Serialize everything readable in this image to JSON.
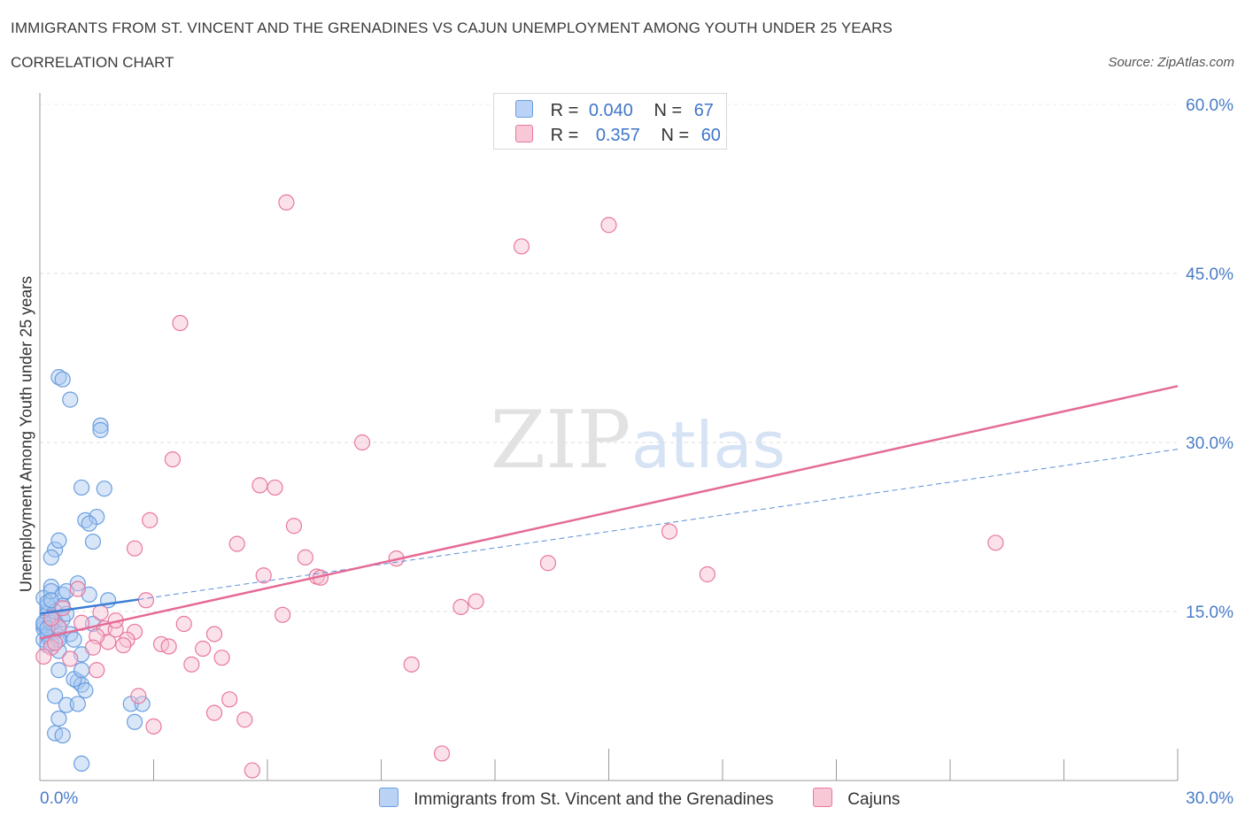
{
  "title": "IMMIGRANTS FROM ST. VINCENT AND THE GRENADINES VS CAJUN UNEMPLOYMENT AMONG YOUTH UNDER 25 YEARS",
  "subtitle": "CORRELATION CHART",
  "source": "Source: ZipAtlas.com",
  "watermark": {
    "zip": "ZIP",
    "atlas": "atlas"
  },
  "legend": {
    "r_label": "R =",
    "n_label": "N =",
    "series1": {
      "r": "0.040",
      "n": "67"
    },
    "series2": {
      "r": "0.357",
      "n": "60"
    }
  },
  "chart_data": {
    "type": "scatter",
    "xlabel": "",
    "ylabel": "Unemployment Among Youth under 25 years",
    "xlim": [
      0,
      30
    ],
    "ylim": [
      0,
      60
    ],
    "x_tick_labels": [
      "0.0%",
      "30.0%"
    ],
    "y_tick_labels": [
      "15.0%",
      "30.0%",
      "45.0%",
      "60.0%"
    ],
    "y_ticks": [
      15,
      30,
      45,
      60
    ],
    "grid": true,
    "series": [
      {
        "name": "Immigrants from St. Vincent and the Grenadines",
        "color": "#6a9ee0",
        "fill": "#a9c8f0",
        "trend": {
          "x": [
            0,
            30
          ],
          "y": [
            14.8,
            29.4
          ],
          "solid_until": 2.6
        },
        "points": [
          [
            0.1,
            13.5
          ],
          [
            0.2,
            12.8
          ],
          [
            0.1,
            16.2
          ],
          [
            0.3,
            14.5
          ],
          [
            0.2,
            15.5
          ],
          [
            0.1,
            12.5
          ],
          [
            0.4,
            13.2
          ],
          [
            0.3,
            17.2
          ],
          [
            0.2,
            14.8
          ],
          [
            0.1,
            13.8
          ],
          [
            0.5,
            12.8
          ],
          [
            0.2,
            15.8
          ],
          [
            0.3,
            16.8
          ],
          [
            0.4,
            14.2
          ],
          [
            0.1,
            14.0
          ],
          [
            0.6,
            16.5
          ],
          [
            0.5,
            13.5
          ],
          [
            0.3,
            12.2
          ],
          [
            0.7,
            16.8
          ],
          [
            0.2,
            13.0
          ],
          [
            0.4,
            20.5
          ],
          [
            0.5,
            21.3
          ],
          [
            0.3,
            19.8
          ],
          [
            0.8,
            13.0
          ],
          [
            0.6,
            15.5
          ],
          [
            0.9,
            12.5
          ],
          [
            1.0,
            17.5
          ],
          [
            1.1,
            11.2
          ],
          [
            0.5,
            11.5
          ],
          [
            0.2,
            12.0
          ],
          [
            0.5,
            35.8
          ],
          [
            0.6,
            35.6
          ],
          [
            0.8,
            33.8
          ],
          [
            1.6,
            31.5
          ],
          [
            1.6,
            31.1
          ],
          [
            1.1,
            26.0
          ],
          [
            1.7,
            25.9
          ],
          [
            1.2,
            23.1
          ],
          [
            1.5,
            23.4
          ],
          [
            1.3,
            22.8
          ],
          [
            1.4,
            21.2
          ],
          [
            1.3,
            16.5
          ],
          [
            1.8,
            16.0
          ],
          [
            1.4,
            13.9
          ],
          [
            0.5,
            9.8
          ],
          [
            1.0,
            8.8
          ],
          [
            1.1,
            8.5
          ],
          [
            1.2,
            8.0
          ],
          [
            0.4,
            7.5
          ],
          [
            0.7,
            6.7
          ],
          [
            0.5,
            5.5
          ],
          [
            0.4,
            4.2
          ],
          [
            0.6,
            4.0
          ],
          [
            1.0,
            6.8
          ],
          [
            0.9,
            9.0
          ],
          [
            1.1,
            9.8
          ],
          [
            2.4,
            6.8
          ],
          [
            2.7,
            6.8
          ],
          [
            2.5,
            5.2
          ],
          [
            1.1,
            1.5
          ],
          [
            0.3,
            14.0
          ],
          [
            0.6,
            14.3
          ],
          [
            0.2,
            13.5
          ],
          [
            0.4,
            15.0
          ],
          [
            0.7,
            14.8
          ],
          [
            0.3,
            16.0
          ],
          [
            0.5,
            12.5
          ]
        ]
      },
      {
        "name": "Cajuns",
        "color": "#e8789f",
        "fill": "#f6bfd0",
        "trend": {
          "x": [
            0,
            30
          ],
          "y": [
            12.6,
            35.0
          ]
        },
        "points": [
          [
            6.5,
            51.3
          ],
          [
            15.0,
            49.3
          ],
          [
            12.7,
            47.4
          ],
          [
            3.7,
            40.6
          ],
          [
            8.5,
            30.0
          ],
          [
            3.5,
            28.5
          ],
          [
            5.8,
            26.2
          ],
          [
            6.2,
            26.0
          ],
          [
            2.9,
            23.1
          ],
          [
            6.7,
            22.6
          ],
          [
            16.6,
            22.1
          ],
          [
            25.2,
            21.1
          ],
          [
            5.2,
            21.0
          ],
          [
            2.5,
            20.6
          ],
          [
            7.0,
            19.8
          ],
          [
            9.4,
            19.7
          ],
          [
            13.4,
            19.3
          ],
          [
            7.3,
            18.1
          ],
          [
            7.4,
            18.0
          ],
          [
            5.9,
            18.2
          ],
          [
            17.6,
            18.3
          ],
          [
            11.5,
            15.9
          ],
          [
            11.1,
            15.4
          ],
          [
            2.8,
            16.0
          ],
          [
            6.4,
            14.7
          ],
          [
            3.8,
            13.9
          ],
          [
            1.7,
            13.5
          ],
          [
            0.5,
            13.6
          ],
          [
            2.0,
            13.4
          ],
          [
            2.5,
            13.2
          ],
          [
            4.6,
            13.0
          ],
          [
            2.3,
            12.5
          ],
          [
            1.8,
            12.3
          ],
          [
            3.2,
            12.1
          ],
          [
            3.4,
            11.9
          ],
          [
            1.5,
            12.8
          ],
          [
            2.2,
            12.0
          ],
          [
            4.3,
            11.7
          ],
          [
            0.3,
            11.8
          ],
          [
            0.1,
            11.0
          ],
          [
            0.8,
            10.8
          ],
          [
            4.0,
            10.3
          ],
          [
            4.8,
            10.9
          ],
          [
            1.5,
            9.8
          ],
          [
            9.8,
            10.3
          ],
          [
            2.6,
            7.5
          ],
          [
            5.0,
            7.2
          ],
          [
            4.6,
            6.0
          ],
          [
            5.4,
            5.4
          ],
          [
            3.0,
            4.8
          ],
          [
            10.6,
            2.4
          ],
          [
            5.6,
            0.9
          ],
          [
            1.0,
            17.0
          ],
          [
            0.6,
            15.3
          ],
          [
            1.1,
            14.0
          ],
          [
            0.4,
            12.2
          ],
          [
            1.4,
            11.8
          ],
          [
            0.3,
            14.4
          ],
          [
            2.0,
            14.2
          ],
          [
            1.6,
            14.9
          ]
        ]
      }
    ]
  }
}
